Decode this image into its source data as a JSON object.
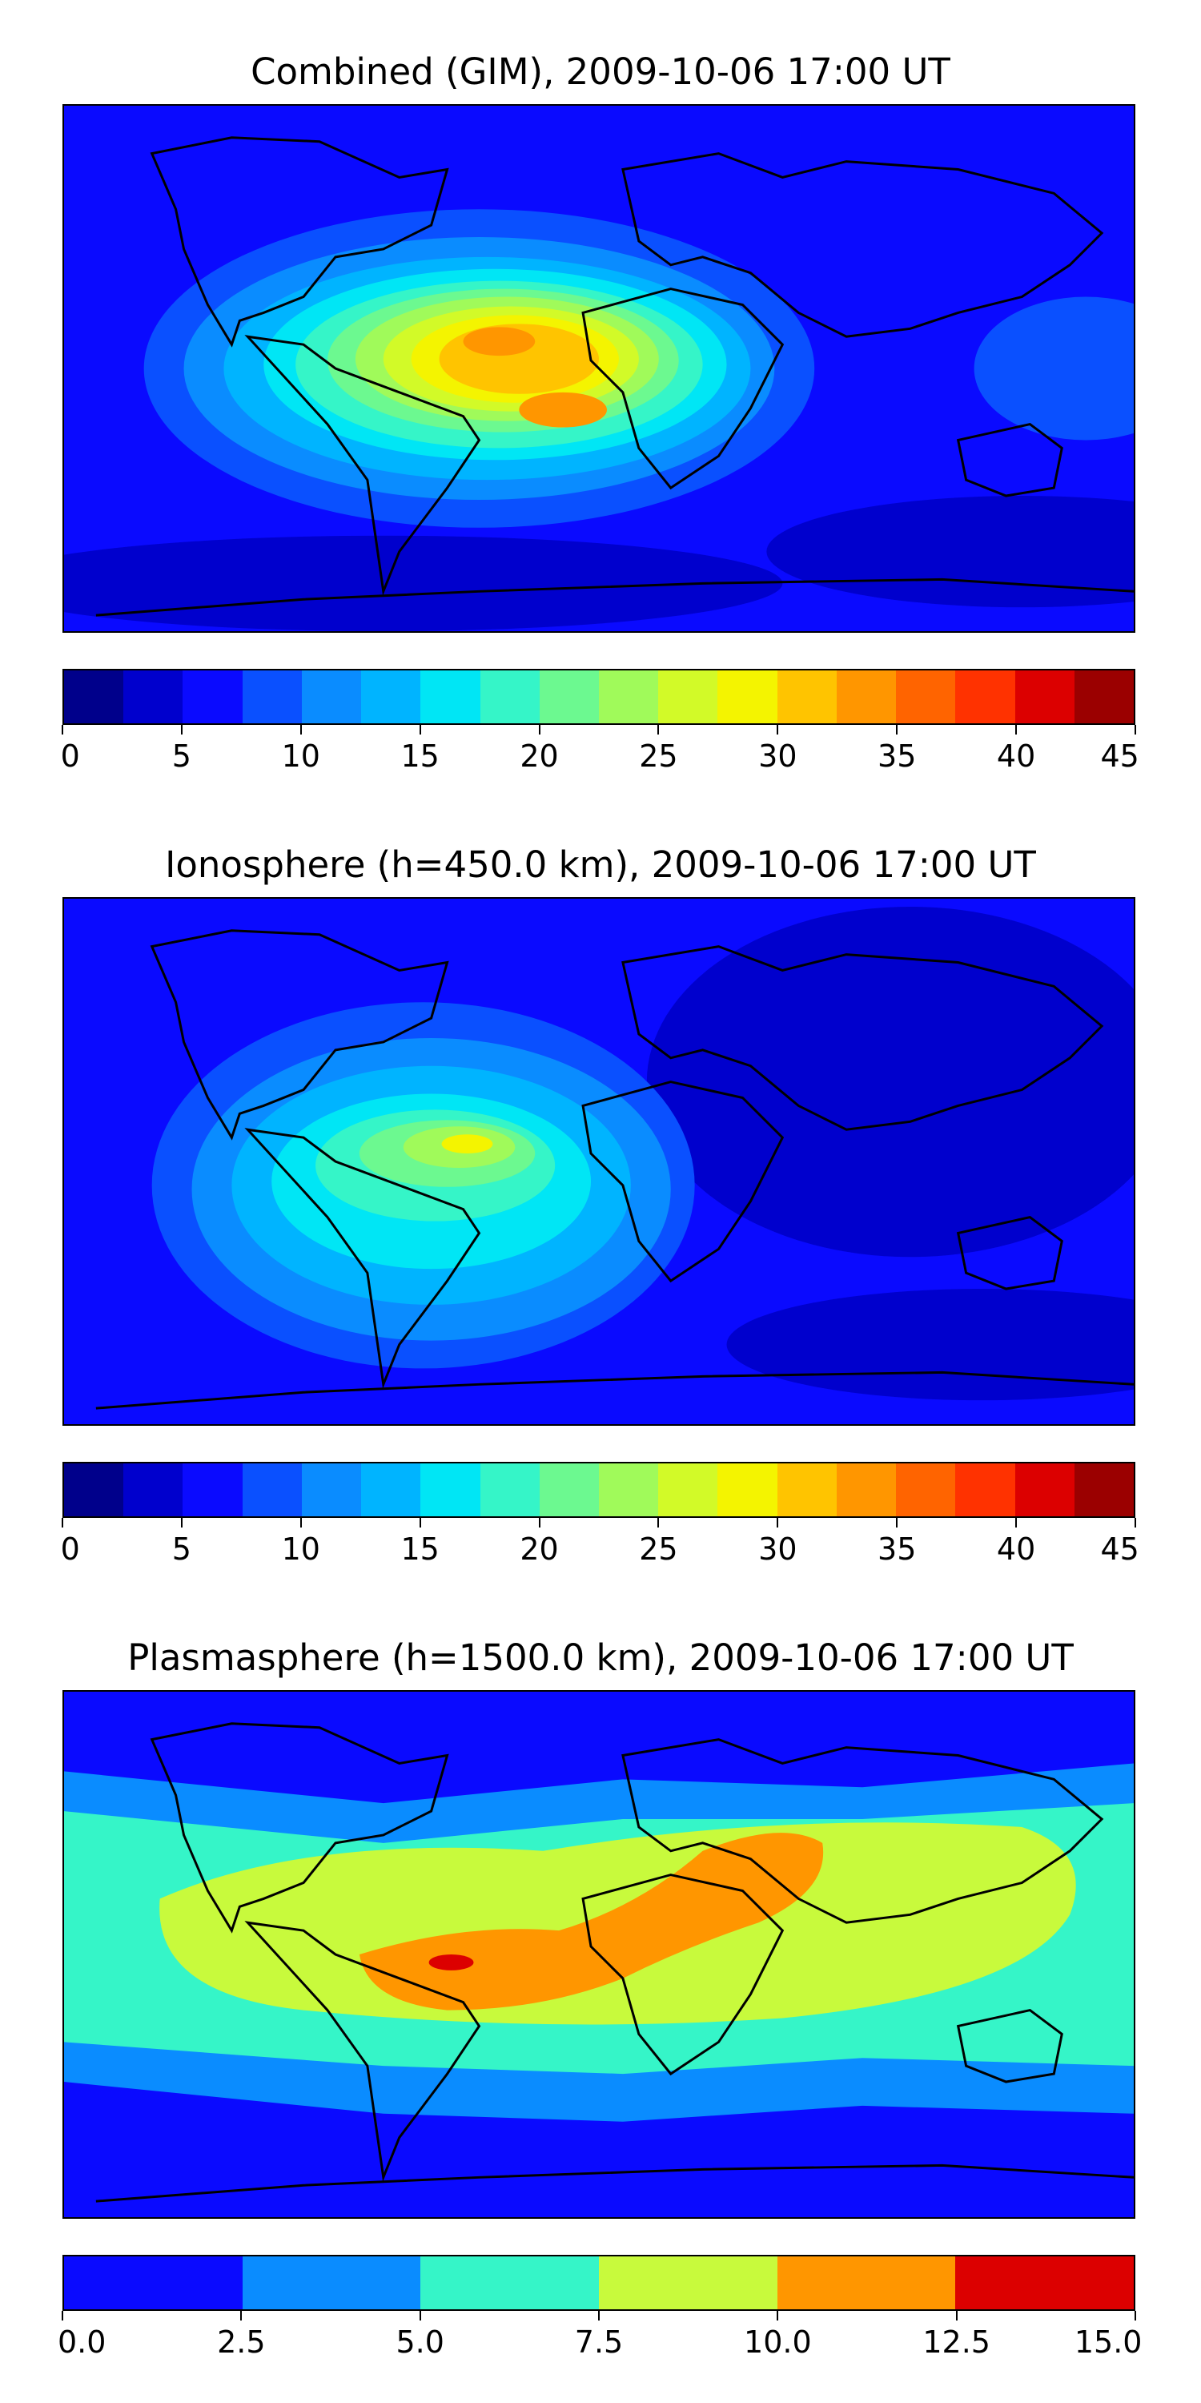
{
  "panels": [
    {
      "title": "Combined (GIM), 2009-10-06 17:00 UT",
      "colorbar": {
        "ticks": [
          "0",
          "5",
          "10",
          "15",
          "20",
          "25",
          "30",
          "35",
          "40",
          "45"
        ],
        "colors": [
          "#00008b",
          "#0000cd",
          "#0a0aff",
          "#0a50ff",
          "#0a8cff",
          "#00b4ff",
          "#00e6f5",
          "#35f5c8",
          "#6cf990",
          "#a0fa5a",
          "#d2fa28",
          "#f4f400",
          "#ffc400",
          "#ff9600",
          "#ff6400",
          "#ff3200",
          "#dc0000",
          "#9b0000"
        ]
      },
      "background": "#0a0aff"
    },
    {
      "title": "Ionosphere  (h=450.0 km), 2009-10-06 17:00 UT",
      "colorbar": {
        "ticks": [
          "0",
          "5",
          "10",
          "15",
          "20",
          "25",
          "30",
          "35",
          "40",
          "45"
        ],
        "colors": [
          "#00008b",
          "#0000cd",
          "#0a0aff",
          "#0a50ff",
          "#0a8cff",
          "#00b4ff",
          "#00e6f5",
          "#35f5c8",
          "#6cf990",
          "#a0fa5a",
          "#d2fa28",
          "#f4f400",
          "#ffc400",
          "#ff9600",
          "#ff6400",
          "#ff3200",
          "#dc0000",
          "#9b0000"
        ]
      },
      "background": "#0a0aff"
    },
    {
      "title": "Plasmasphere (h=1500.0 km), 2009-10-06 17:00 UT",
      "colorbar": {
        "ticks": [
          "0.0",
          "2.5",
          "5.0",
          "7.5",
          "10.0",
          "12.5",
          "15.0"
        ],
        "colors": [
          "#0a0aff",
          "#0a8cff",
          "#35f5c8",
          "#c8fa3c",
          "#ff9600",
          "#dc0000"
        ]
      },
      "background": "#0a0aff"
    }
  ]
}
